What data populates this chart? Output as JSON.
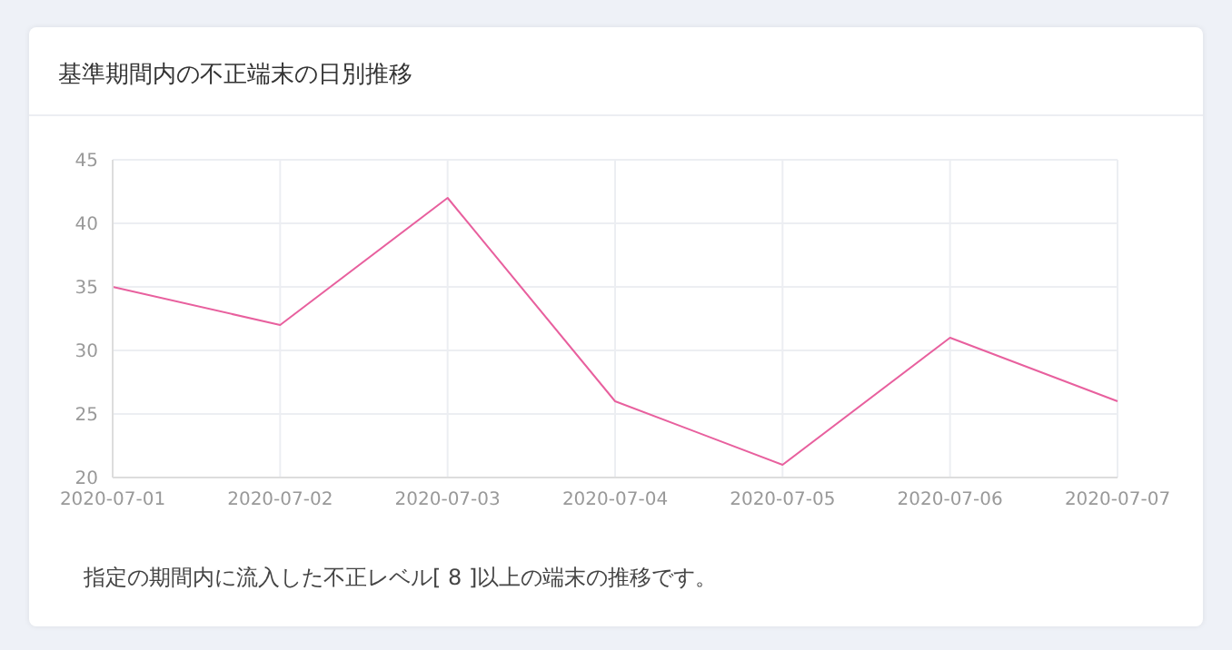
{
  "chart_data": {
    "type": "line",
    "title": "基準期間内の不正端末の日別推移",
    "categories": [
      "2020-07-01",
      "2020-07-02",
      "2020-07-03",
      "2020-07-04",
      "2020-07-05",
      "2020-07-06",
      "2020-07-07"
    ],
    "series": [
      {
        "color": "#e8609e",
        "values": [
          35,
          32,
          42,
          26,
          21,
          31,
          26
        ]
      }
    ],
    "ylim": [
      20,
      45
    ],
    "yticks": [
      20,
      25,
      30,
      35,
      40,
      45
    ],
    "grid": true,
    "marker": "none",
    "annotations": [
      "指定の期間内に流入した不正レベル[ 8 ]以上の端末の推移です。"
    ]
  }
}
